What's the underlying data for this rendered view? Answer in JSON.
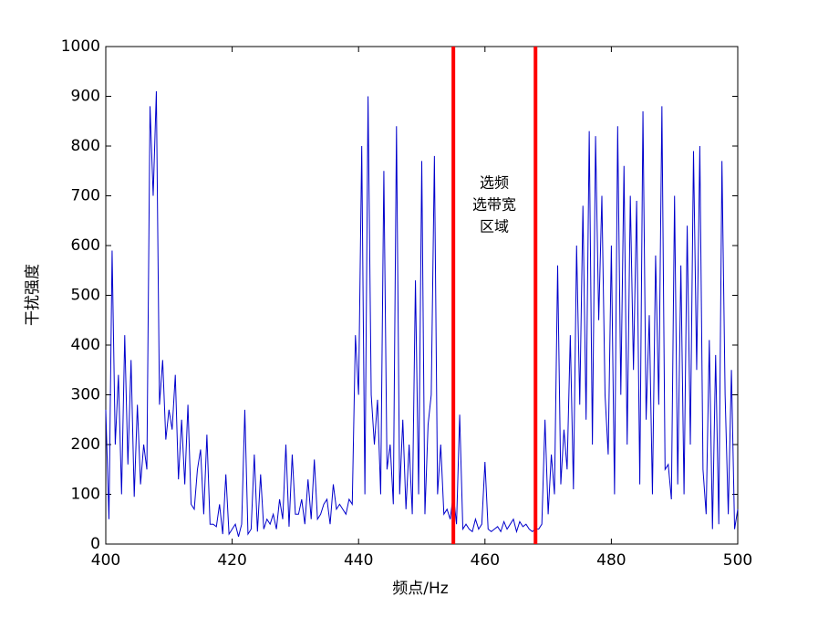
{
  "chart_data": {
    "type": "line",
    "xlabel": "频点/Hz",
    "ylabel": "干扰强度",
    "annotation": [
      "选频",
      "选带宽",
      "区域"
    ],
    "vlines": [
      455,
      468
    ],
    "vline_color": "#ff0000",
    "xlim": [
      400,
      500
    ],
    "xticks": [
      400,
      420,
      440,
      460,
      480,
      500
    ],
    "ylim": [
      0,
      1000
    ],
    "yticks": [
      0,
      100,
      200,
      300,
      400,
      500,
      600,
      700,
      800,
      900,
      1000
    ],
    "x": [
      400,
      400.5,
      401,
      401.5,
      402,
      402.5,
      403,
      403.5,
      404,
      404.5,
      405,
      405.5,
      406,
      406.5,
      407,
      407.5,
      408,
      408.5,
      409,
      409.5,
      410,
      410.5,
      411,
      411.5,
      412,
      412.5,
      413,
      413.5,
      414,
      414.5,
      415,
      415.5,
      416,
      416.5,
      417,
      417.5,
      418,
      418.5,
      419,
      419.5,
      420,
      420.5,
      421,
      421.5,
      422,
      422.5,
      423,
      423.5,
      424,
      424.5,
      425,
      425.5,
      426,
      426.5,
      427,
      427.5,
      428,
      428.5,
      429,
      429.5,
      430,
      430.5,
      431,
      431.5,
      432,
      432.5,
      433,
      433.5,
      434,
      434.5,
      435,
      435.5,
      436,
      436.5,
      437,
      437.5,
      438,
      438.5,
      439,
      439.5,
      440,
      440.5,
      441,
      441.5,
      442,
      442.5,
      443,
      443.5,
      444,
      444.5,
      445,
      445.5,
      446,
      446.5,
      447,
      447.5,
      448,
      448.5,
      449,
      449.5,
      450,
      450.5,
      451,
      451.5,
      452,
      452.5,
      453,
      453.5,
      454,
      454.5,
      455,
      455.5,
      456,
      456.5,
      457,
      457.5,
      458,
      458.5,
      459,
      459.5,
      460,
      460.5,
      461,
      461.5,
      462,
      462.5,
      463,
      463.5,
      464,
      464.5,
      465,
      465.5,
      466,
      466.5,
      467,
      467.5,
      468,
      468.5,
      469,
      469.5,
      470,
      470.5,
      471,
      471.5,
      472,
      472.5,
      473,
      473.5,
      474,
      474.5,
      475,
      475.5,
      476,
      476.5,
      477,
      477.5,
      478,
      478.5,
      479,
      479.5,
      480,
      480.5,
      481,
      481.5,
      482,
      482.5,
      483,
      483.5,
      484,
      484.5,
      485,
      485.5,
      486,
      486.5,
      487,
      487.5,
      488,
      488.5,
      489,
      489.5,
      490,
      490.5,
      491,
      491.5,
      492,
      492.5,
      493,
      493.5,
      494,
      494.5,
      495,
      495.5,
      496,
      496.5,
      497,
      497.5,
      498,
      498.5,
      499,
      499.5,
      500
    ],
    "series": [
      {
        "color": "#0000cc",
        "values": [
          270,
          50,
          590,
          200,
          340,
          100,
          420,
          160,
          370,
          95,
          280,
          120,
          200,
          150,
          880,
          700,
          910,
          280,
          370,
          210,
          270,
          230,
          340,
          130,
          250,
          120,
          280,
          80,
          70,
          150,
          190,
          60,
          220,
          40,
          40,
          35,
          80,
          20,
          140,
          20,
          30,
          40,
          15,
          40,
          270,
          20,
          30,
          180,
          25,
          140,
          30,
          50,
          40,
          60,
          30,
          90,
          50,
          200,
          35,
          180,
          60,
          60,
          90,
          40,
          130,
          50,
          170,
          50,
          60,
          80,
          90,
          40,
          120,
          70,
          80,
          70,
          60,
          90,
          80,
          420,
          300,
          800,
          100,
          900,
          300,
          200,
          290,
          100,
          750,
          150,
          200,
          80,
          840,
          100,
          250,
          70,
          200,
          60,
          530,
          100,
          770,
          60,
          240,
          300,
          780,
          100,
          200,
          60,
          70,
          50,
          100,
          40,
          260,
          30,
          40,
          30,
          25,
          50,
          30,
          40,
          165,
          30,
          25,
          30,
          35,
          25,
          45,
          30,
          40,
          50,
          25,
          45,
          35,
          40,
          30,
          25,
          30,
          30,
          40,
          250,
          60,
          180,
          100,
          560,
          120,
          230,
          150,
          420,
          110,
          600,
          280,
          680,
          250,
          830,
          200,
          820,
          450,
          700,
          300,
          180,
          600,
          100,
          840,
          300,
          760,
          200,
          700,
          350,
          690,
          120,
          870,
          250,
          460,
          100,
          580,
          280,
          880,
          150,
          160,
          90,
          700,
          120,
          560,
          100,
          640,
          200,
          790,
          350,
          800,
          150,
          60,
          410,
          30,
          380,
          40,
          770,
          300,
          60,
          350,
          30,
          70
        ]
      }
    ]
  }
}
